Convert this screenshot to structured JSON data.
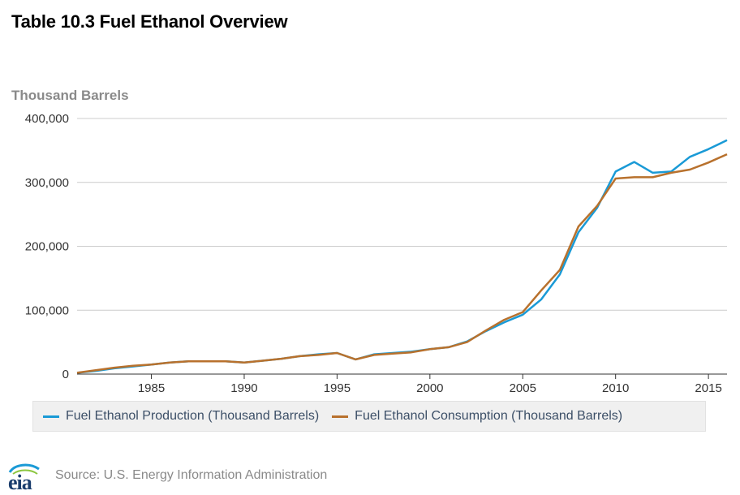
{
  "title": "Table 10.3 Fuel Ethanol Overview",
  "source": "Source: U.S. Energy Information Administration",
  "logo_text": "eia",
  "colors": {
    "production": "#1a9ad6",
    "consumption": "#b8712d",
    "grid": "#cccccc"
  },
  "chart_data": {
    "type": "line",
    "ylabel": "Thousand Barrels",
    "xlim": [
      1981,
      2016
    ],
    "ylim": [
      0,
      400000
    ],
    "y_ticks": [
      0,
      100000,
      200000,
      300000,
      400000
    ],
    "y_tick_labels": [
      "0",
      "100,000",
      "200,000",
      "300,000",
      "400,000"
    ],
    "x_ticks": [
      1985,
      1990,
      1995,
      2000,
      2005,
      2010,
      2015
    ],
    "x_tick_labels": [
      "1985",
      "1990",
      "1995",
      "2000",
      "2005",
      "2010",
      "2015"
    ],
    "x": [
      1981,
      1982,
      1983,
      1984,
      1985,
      1986,
      1987,
      1988,
      1989,
      1990,
      1991,
      1992,
      1993,
      1994,
      1995,
      1996,
      1997,
      1998,
      1999,
      2000,
      2001,
      2002,
      2003,
      2004,
      2005,
      2006,
      2007,
      2008,
      2009,
      2010,
      2011,
      2012,
      2013,
      2014,
      2015,
      2016
    ],
    "series": [
      {
        "name": "Fuel Ethanol Production (Thousand Barrels)",
        "values": [
          2000,
          5000,
          9000,
          12000,
          15000,
          18000,
          20000,
          20000,
          20000,
          18000,
          21000,
          24000,
          28000,
          31000,
          33000,
          23000,
          31000,
          33000,
          35000,
          39000,
          42000,
          51000,
          67000,
          81000,
          93000,
          117000,
          156000,
          222000,
          260000,
          317000,
          332000,
          315000,
          317000,
          340000,
          352000,
          366000
        ]
      },
      {
        "name": "Fuel Ethanol Consumption (Thousand Barrels)",
        "values": [
          2000,
          6000,
          10000,
          13000,
          15000,
          18000,
          20000,
          20000,
          20000,
          18000,
          21000,
          24000,
          28000,
          30000,
          33000,
          23000,
          30000,
          32000,
          34000,
          39000,
          42000,
          50000,
          68000,
          85000,
          97000,
          131000,
          163000,
          231000,
          263000,
          306000,
          308000,
          308000,
          315000,
          320000,
          331000,
          344000
        ]
      }
    ],
    "grid": true,
    "legend_position": "bottom"
  }
}
